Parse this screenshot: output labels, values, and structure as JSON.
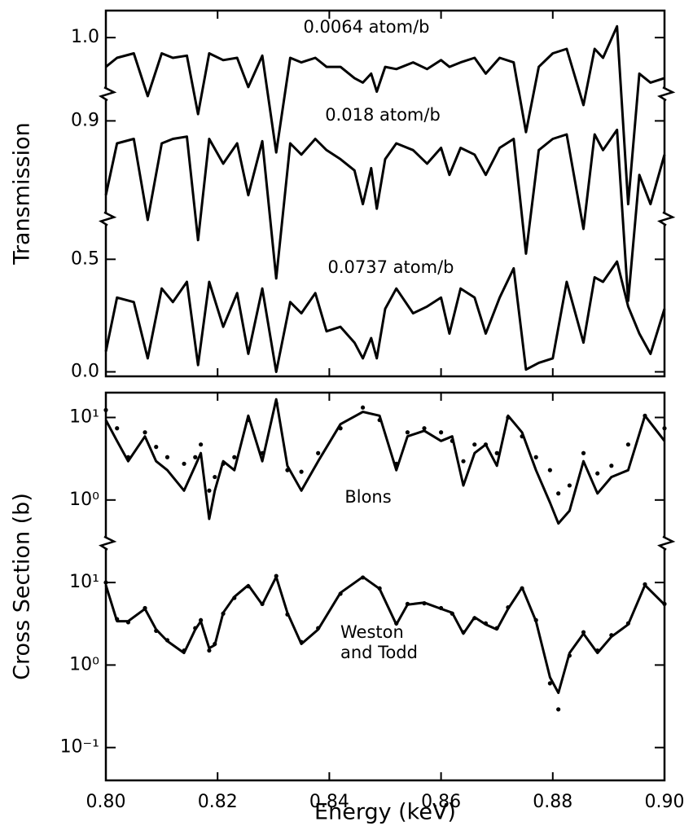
{
  "chart_data": [
    {
      "type": "line",
      "ylabel": "Transmission",
      "xlim": [
        0.8,
        0.9
      ],
      "x": [
        0.8,
        0.802,
        0.805,
        0.8075,
        0.81,
        0.812,
        0.8145,
        0.8165,
        0.8185,
        0.821,
        0.8235,
        0.8255,
        0.828,
        0.8305,
        0.833,
        0.835,
        0.8375,
        0.8395,
        0.842,
        0.8445,
        0.846,
        0.8475,
        0.8485,
        0.85,
        0.852,
        0.855,
        0.8575,
        0.86,
        0.8615,
        0.8635,
        0.866,
        0.868,
        0.8705,
        0.873,
        0.8752,
        0.8775,
        0.88,
        0.8825,
        0.8855,
        0.8875,
        0.889,
        0.8915,
        0.8935,
        0.8955,
        0.8975,
        0.9
      ],
      "y_segments": [
        {
          "ylim": [
            0.75,
            1.12
          ],
          "yticks": [
            {
              "value": 1,
              "label": "1.0"
            }
          ]
        },
        {
          "ylim": [
            0.465,
            1.02
          ],
          "yticks": [
            {
              "value": 0.9,
              "label": "0.9"
            }
          ]
        },
        {
          "ylim": [
            -0.02,
            0.68
          ],
          "yticks": [
            {
              "value": 0.5,
              "label": "0.5"
            },
            {
              "value": 0,
              "label": "0.0"
            }
          ]
        }
      ],
      "series": [
        {
          "name": "0.0064 atom/b",
          "color": "#000000",
          "segment": 0,
          "style": "line",
          "values": [
            0.87,
            0.91,
            0.93,
            0.74,
            0.93,
            0.91,
            0.92,
            0.66,
            0.93,
            0.9,
            0.91,
            0.78,
            0.92,
            0.49,
            0.91,
            0.89,
            0.91,
            0.87,
            0.87,
            0.82,
            0.8,
            0.84,
            0.76,
            0.87,
            0.86,
            0.89,
            0.86,
            0.9,
            0.87,
            0.89,
            0.91,
            0.84,
            0.91,
            0.89,
            0.58,
            0.87,
            0.93,
            0.95,
            0.7,
            0.95,
            0.91,
            1.05,
            0.26,
            0.84,
            0.8,
            0.82
          ]
        },
        {
          "name": "0.018 atom/b",
          "color": "#000000",
          "segment": 1,
          "style": "line",
          "values": [
            0.57,
            0.8,
            0.82,
            0.46,
            0.8,
            0.82,
            0.83,
            0.37,
            0.82,
            0.71,
            0.8,
            0.57,
            0.81,
            0.2,
            0.8,
            0.75,
            0.82,
            0.77,
            0.73,
            0.68,
            0.53,
            0.69,
            0.51,
            0.73,
            0.8,
            0.77,
            0.71,
            0.78,
            0.66,
            0.78,
            0.75,
            0.66,
            0.78,
            0.82,
            0.31,
            0.77,
            0.82,
            0.84,
            0.42,
            0.84,
            0.77,
            0.86,
            0.1,
            0.66,
            0.53,
            0.75
          ]
        },
        {
          "name": "0.0737 atom/b",
          "color": "#000000",
          "segment": 2,
          "style": "line",
          "values": [
            0.09,
            0.33,
            0.31,
            0.06,
            0.37,
            0.31,
            0.4,
            0.03,
            0.4,
            0.2,
            0.35,
            0.08,
            0.37,
            0.0,
            0.31,
            0.26,
            0.35,
            0.18,
            0.2,
            0.13,
            0.06,
            0.15,
            0.06,
            0.28,
            0.37,
            0.26,
            0.29,
            0.33,
            0.17,
            0.37,
            0.33,
            0.17,
            0.33,
            0.46,
            0.01,
            0.04,
            0.06,
            0.4,
            0.13,
            0.42,
            0.4,
            0.49,
            0.29,
            0.17,
            0.08,
            0.28
          ]
        }
      ]
    },
    {
      "type": "line",
      "ylabel": "Cross Section (b)",
      "xlabel": "Energy (keV)",
      "log": true,
      "xlim": [
        0.8,
        0.9
      ],
      "xticks": [
        {
          "value": 0.8,
          "label": "0.80"
        },
        {
          "value": 0.82,
          "label": "0.82"
        },
        {
          "value": 0.84,
          "label": "0.84"
        },
        {
          "value": 0.86,
          "label": "0.86"
        },
        {
          "value": 0.88,
          "label": "0.88"
        },
        {
          "value": 0.9,
          "label": "0.90"
        }
      ],
      "x": [
        0.8,
        0.802,
        0.804,
        0.807,
        0.809,
        0.811,
        0.814,
        0.816,
        0.817,
        0.8185,
        0.8195,
        0.821,
        0.823,
        0.8255,
        0.828,
        0.8305,
        0.8325,
        0.835,
        0.838,
        0.842,
        0.846,
        0.849,
        0.852,
        0.854,
        0.857,
        0.86,
        0.862,
        0.864,
        0.866,
        0.868,
        0.87,
        0.872,
        0.8745,
        0.877,
        0.8795,
        0.881,
        0.883,
        0.8855,
        0.888,
        0.8905,
        0.8935,
        0.8965,
        0.9
      ],
      "y_segments": [
        {
          "ylim": [
            0.3,
            20
          ],
          "yticks": [
            {
              "value": 10,
              "label": "10¹"
            },
            {
              "value": 1,
              "label": "10⁰"
            }
          ]
        },
        {
          "ylim": [
            0.04,
            30
          ],
          "yticks": [
            {
              "value": 10,
              "label": "10¹"
            },
            {
              "value": 1,
              "label": "10⁰"
            },
            {
              "value": 0.1,
              "label": "10⁻¹"
            }
          ]
        }
      ],
      "series": [
        {
          "name": "Blons",
          "color": "#000000",
          "segment": 0,
          "style": "line",
          "values": [
            9.3,
            5.2,
            2.95,
            5.9,
            2.95,
            2.3,
            1.3,
            2.6,
            3.7,
            0.59,
            1.3,
            2.95,
            2.3,
            10.5,
            2.95,
            16.6,
            2.6,
            1.3,
            2.95,
            8.3,
            11.7,
            10.5,
            2.3,
            5.9,
            6.9,
            5.2,
            5.9,
            1.5,
            3.7,
            4.7,
            2.6,
            10.5,
            6.6,
            2.3,
            0.93,
            0.52,
            0.74,
            2.95,
            1.2,
            1.9,
            2.3,
            10.5,
            5.2
          ]
        },
        {
          "color": "#000000",
          "segment": 0,
          "style": "points",
          "values": [
            12.3,
            7.4,
            3.3,
            6.6,
            4.4,
            3.3,
            2.75,
            3.3,
            4.7,
            1.3,
            1.9,
            2.75,
            3.3,
            9.3,
            3.7,
            14.8,
            2.3,
            2.2,
            3.7,
            7.4,
            13.2,
            9.3,
            2.75,
            6.6,
            7.4,
            6.6,
            5.2,
            2.95,
            4.7,
            4.7,
            3.7,
            10,
            5.9,
            3.3,
            2.3,
            1.2,
            1.5,
            3.7,
            2.1,
            2.6,
            4.7,
            10.5,
            7.4
          ]
        },
        {
          "name": "Weston and Todd",
          "color": "#000000",
          "segment": 1,
          "style": "line",
          "values": [
            9.3,
            3.4,
            3.4,
            4.8,
            2.7,
            1.95,
            1.4,
            2.7,
            3.4,
            1.6,
            1.75,
            4.3,
            6.7,
            9.3,
            5.4,
            11.7,
            4.3,
            1.8,
            2.7,
            7.5,
            11.7,
            8.4,
            3.1,
            5.4,
            5.7,
            4.8,
            4.3,
            2.4,
            3.8,
            3.1,
            2.7,
            4.8,
            8.7,
            3.4,
            0.71,
            0.46,
            1.4,
            2.4,
            1.4,
            2.2,
            3.1,
            9.3,
            5.4
          ]
        },
        {
          "color": "#000000",
          "segment": 1,
          "style": "points",
          "values": [
            10,
            3.6,
            3.3,
            4.9,
            2.6,
            2,
            1.5,
            2.8,
            3.5,
            1.5,
            1.8,
            4.2,
            6.5,
            9,
            5.5,
            12,
            4.1,
            1.9,
            2.8,
            7.3,
            11.5,
            8.5,
            3.2,
            5.5,
            5.6,
            4.9,
            4.2,
            2.5,
            3.7,
            3.2,
            2.8,
            5,
            8.5,
            3.5,
            0.6,
            0.29,
            1.3,
            2.5,
            1.5,
            2.3,
            3.2,
            9.5,
            5.5
          ]
        }
      ]
    }
  ]
}
